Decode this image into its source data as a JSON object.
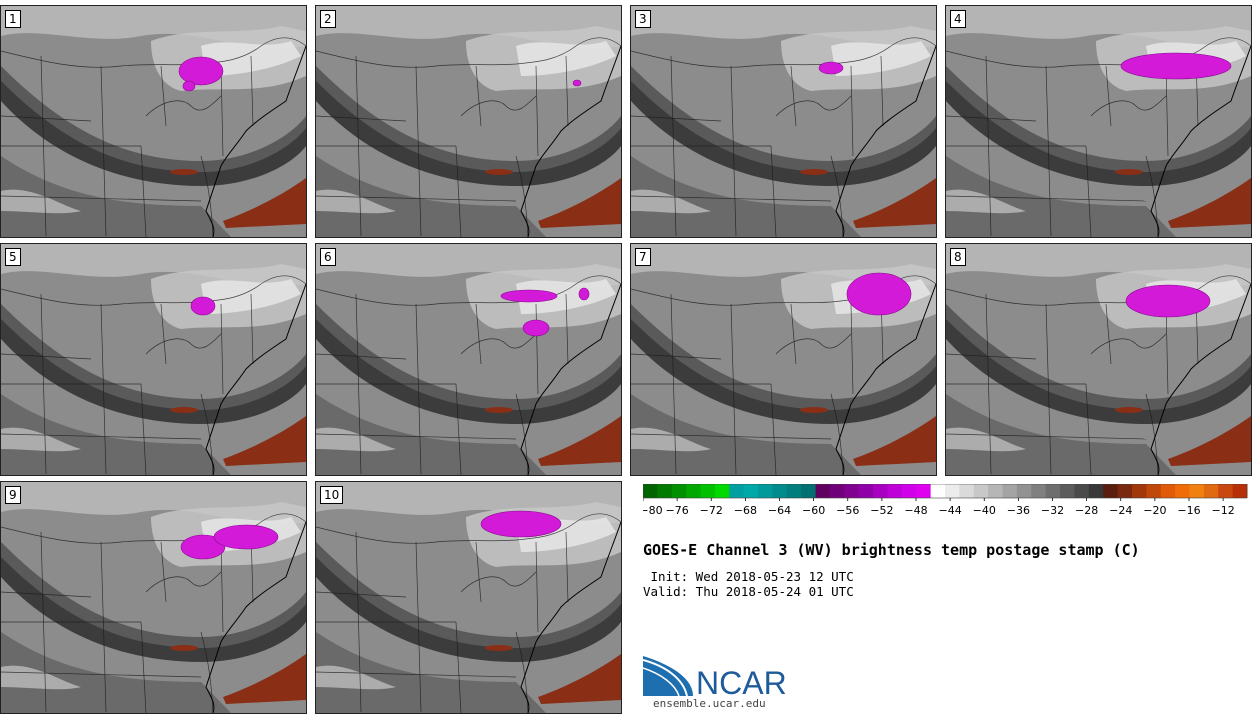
{
  "panels": [
    {
      "label": "1",
      "blobs": [
        [
          200,
          65,
          22,
          14
        ],
        [
          188,
          80,
          6,
          5
        ]
      ]
    },
    {
      "label": "2",
      "blobs": [
        [
          261,
          77,
          4,
          3
        ]
      ]
    },
    {
      "label": "3",
      "blobs": [
        [
          200,
          62,
          12,
          6
        ]
      ]
    },
    {
      "label": "4",
      "blobs": [
        [
          230,
          60,
          55,
          13
        ]
      ]
    },
    {
      "label": "5",
      "blobs": [
        [
          202,
          62,
          12,
          9
        ],
        [
          70,
          258,
          6,
          12
        ]
      ]
    },
    {
      "label": "6",
      "blobs": [
        [
          213,
          52,
          28,
          6
        ],
        [
          220,
          84,
          13,
          8
        ],
        [
          268,
          50,
          5,
          6
        ]
      ]
    },
    {
      "label": "7",
      "blobs": [
        [
          248,
          50,
          32,
          21
        ]
      ]
    },
    {
      "label": "8",
      "blobs": [
        [
          222,
          57,
          42,
          16
        ]
      ]
    },
    {
      "label": "9",
      "blobs": [
        [
          202,
          65,
          22,
          12
        ],
        [
          245,
          55,
          32,
          12
        ]
      ]
    },
    {
      "label": "10",
      "blobs": [
        [
          205,
          42,
          40,
          13
        ]
      ]
    }
  ],
  "colorbar": {
    "ticks": [
      "−80",
      "−76",
      "−72",
      "−68",
      "−64",
      "−60",
      "−56",
      "−52",
      "−48",
      "−44",
      "−40",
      "−36",
      "−32",
      "−28",
      "−24",
      "−20",
      "−16",
      "−12"
    ],
    "colors": [
      "#006400",
      "#007a00",
      "#009000",
      "#00a800",
      "#00c000",
      "#00da00",
      "#00a0a0",
      "#00a8a8",
      "#009a9a",
      "#008c8c",
      "#007e7e",
      "#007070",
      "#600060",
      "#70007a",
      "#800090",
      "#9000a8",
      "#a800c0",
      "#c000d8",
      "#d000e8",
      "#e000f0",
      "#ffffff",
      "#ececec",
      "#dadada",
      "#c8c8c8",
      "#b6b6b6",
      "#a4a4a4",
      "#929292",
      "#808080",
      "#6e6e6e",
      "#5c5c5c",
      "#4a4a4a",
      "#383838",
      "#5a1e0e",
      "#7a2810",
      "#a0380c",
      "#c0480a",
      "#e05a08",
      "#f06c08",
      "#f08010",
      "#e06a10",
      "#c84810",
      "#b83008"
    ]
  },
  "title": "GOES-E Channel 3 (WV) brightness temp postage stamp (C)",
  "init": " Init: Wed 2018-05-23 12 UTC",
  "valid": "Valid: Thu 2018-05-24 01 UTC",
  "logo": {
    "text": "NCAR",
    "url": "ensemble.ucar.edu",
    "color": "#1d5b9a"
  }
}
